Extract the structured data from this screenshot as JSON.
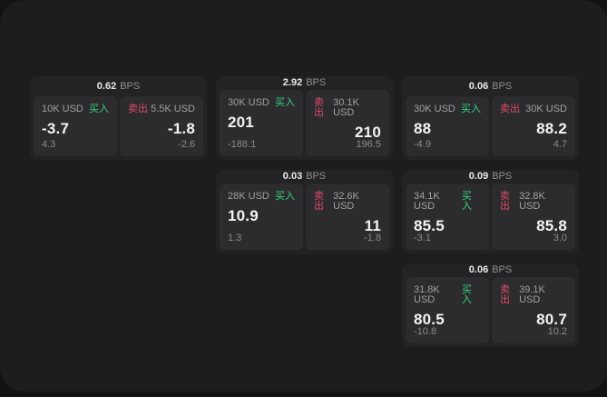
{
  "labels": {
    "buy": "买入",
    "sell": "卖出",
    "bps_suffix": "BPS"
  },
  "colors": {
    "buy_green": "#36d381",
    "sell_pink": "#dd4a6c",
    "window_bg": "#1d1d1f",
    "card_bg": "#232325",
    "panel_bg": "#2c2c2e"
  },
  "cards": [
    {
      "grid": {
        "row": 1,
        "col": 1
      },
      "bps": "0.62",
      "buy": {
        "amount": "10K USD",
        "value": "-3.7",
        "change": "4.3"
      },
      "sell": {
        "amount": "5.5K USD",
        "value": "-1.8",
        "change": "-2.6"
      }
    },
    {
      "grid": {
        "row": 1,
        "col": 2
      },
      "bps": "2.92",
      "buy": {
        "amount": "30K USD",
        "value": "201",
        "change": "-188.1"
      },
      "sell": {
        "amount": "30.1K USD",
        "value": "210",
        "change": "196.5"
      }
    },
    {
      "grid": {
        "row": 1,
        "col": 3
      },
      "bps": "0.06",
      "buy": {
        "amount": "30K USD",
        "value": "88",
        "change": "-4.9"
      },
      "sell": {
        "amount": "30K USD",
        "value": "88.2",
        "change": "4.7"
      }
    },
    {
      "grid": {
        "row": 2,
        "col": 2
      },
      "bps": "0.03",
      "buy": {
        "amount": "28K USD",
        "value": "10.9",
        "change": "1.3"
      },
      "sell": {
        "amount": "32.6K USD",
        "value": "11",
        "change": "-1.8"
      }
    },
    {
      "grid": {
        "row": 2,
        "col": 3
      },
      "bps": "0.09",
      "buy": {
        "amount": "34.1K USD",
        "value": "85.5",
        "change": "-3.1"
      },
      "sell": {
        "amount": "32.8K USD",
        "value": "85.8",
        "change": "3.0"
      }
    },
    {
      "grid": {
        "row": 3,
        "col": 3
      },
      "bps": "0.06",
      "buy": {
        "amount": "31.8K USD",
        "value": "80.5",
        "change": "-10.8"
      },
      "sell": {
        "amount": "39.1K USD",
        "value": "80.7",
        "change": "10.2"
      }
    }
  ]
}
